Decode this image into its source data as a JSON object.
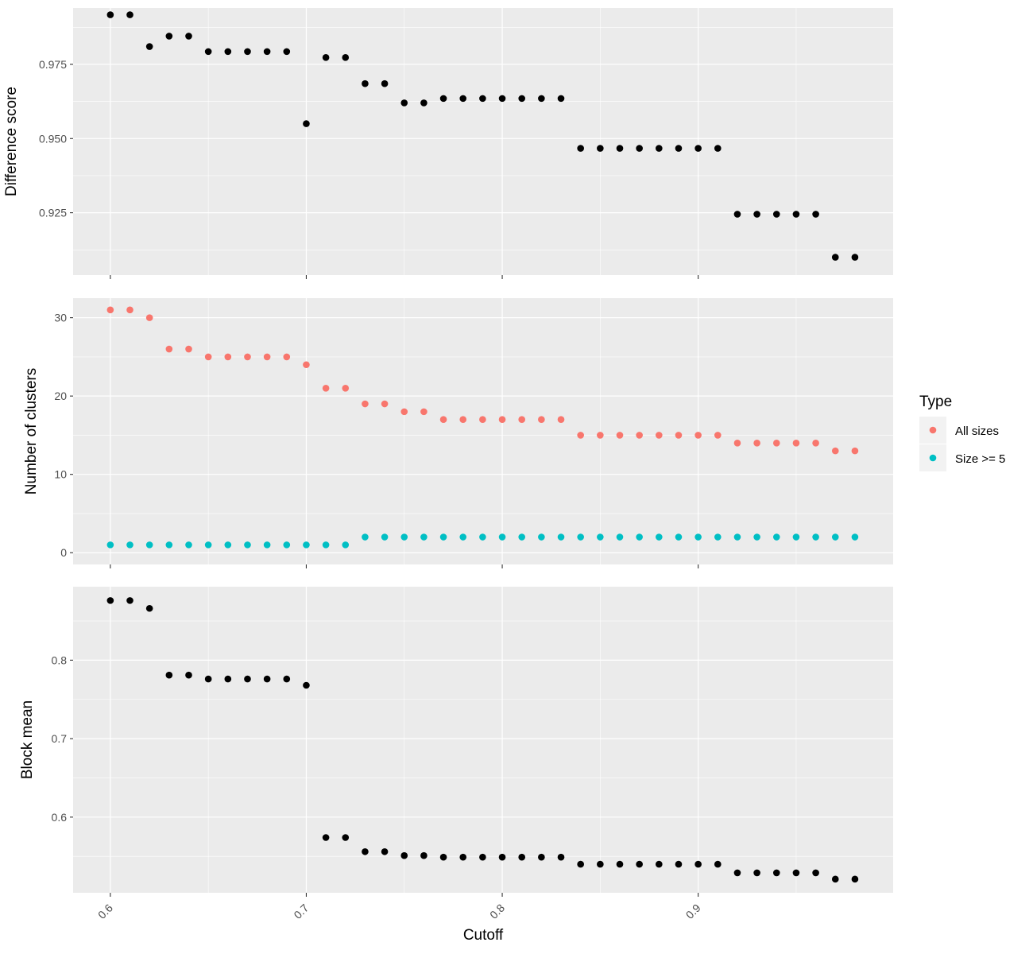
{
  "colors": {
    "panel_bg": "#ebebeb",
    "grid": "#ffffff",
    "all_sizes": "#f8766d",
    "size_ge_5": "#00bfc4",
    "single": "#000000"
  },
  "chart_data": [
    {
      "type": "scatter",
      "ylabel": "Difference score",
      "ylim": [
        0.904,
        0.994
      ],
      "yticks": [
        {
          "value": 0.925,
          "label": "0.925"
        },
        {
          "value": 0.95,
          "label": "0.950"
        },
        {
          "value": 0.975,
          "label": "0.975"
        }
      ],
      "series": [
        {
          "color": "#000000",
          "x": [
            0.6,
            0.61,
            0.62,
            0.63,
            0.64,
            0.65,
            0.66,
            0.67,
            0.68,
            0.69,
            0.7,
            0.71,
            0.72,
            0.73,
            0.74,
            0.75,
            0.76,
            0.77,
            0.78,
            0.79,
            0.8,
            0.81,
            0.82,
            0.83,
            0.84,
            0.85,
            0.86,
            0.87,
            0.88,
            0.89,
            0.9,
            0.91,
            0.92,
            0.93,
            0.94,
            0.95,
            0.96,
            0.97,
            0.98
          ],
          "y": [
            0.9917,
            0.9917,
            0.981,
            0.9845,
            0.9845,
            0.9793,
            0.9793,
            0.9793,
            0.9793,
            0.9793,
            0.955,
            0.9773,
            0.9773,
            0.9685,
            0.9685,
            0.962,
            0.962,
            0.9635,
            0.9635,
            0.9635,
            0.9635,
            0.9635,
            0.9635,
            0.9635,
            0.9467,
            0.9467,
            0.9467,
            0.9467,
            0.9467,
            0.9467,
            0.9467,
            0.9467,
            0.9245,
            0.9245,
            0.9245,
            0.9245,
            0.9245,
            0.91,
            0.91
          ]
        }
      ]
    },
    {
      "type": "scatter",
      "ylabel": "Number of clusters",
      "ylim": [
        -1.5,
        32.5
      ],
      "yticks": [
        {
          "value": 0,
          "label": "0"
        },
        {
          "value": 10,
          "label": "10"
        },
        {
          "value": 20,
          "label": "20"
        },
        {
          "value": 30,
          "label": "30"
        }
      ],
      "legend": {
        "title": "Type",
        "position": "right",
        "entries": [
          {
            "label": "All sizes",
            "color": "#f8766d"
          },
          {
            "label": "Size >= 5",
            "color": "#00bfc4"
          }
        ]
      },
      "series": [
        {
          "name": "All sizes",
          "color": "#f8766d",
          "x": [
            0.6,
            0.61,
            0.62,
            0.63,
            0.64,
            0.65,
            0.66,
            0.67,
            0.68,
            0.69,
            0.7,
            0.71,
            0.72,
            0.73,
            0.74,
            0.75,
            0.76,
            0.77,
            0.78,
            0.79,
            0.8,
            0.81,
            0.82,
            0.83,
            0.84,
            0.85,
            0.86,
            0.87,
            0.88,
            0.89,
            0.9,
            0.91,
            0.92,
            0.93,
            0.94,
            0.95,
            0.96,
            0.97,
            0.98
          ],
          "y": [
            31,
            31,
            30,
            26,
            26,
            25,
            25,
            25,
            25,
            25,
            24,
            21,
            21,
            19,
            19,
            18,
            18,
            17,
            17,
            17,
            17,
            17,
            17,
            17,
            15,
            15,
            15,
            15,
            15,
            15,
            15,
            15,
            14,
            14,
            14,
            14,
            14,
            13,
            13
          ]
        },
        {
          "name": "Size >= 5",
          "color": "#00bfc4",
          "x": [
            0.6,
            0.61,
            0.62,
            0.63,
            0.64,
            0.65,
            0.66,
            0.67,
            0.68,
            0.69,
            0.7,
            0.71,
            0.72,
            0.73,
            0.74,
            0.75,
            0.76,
            0.77,
            0.78,
            0.79,
            0.8,
            0.81,
            0.82,
            0.83,
            0.84,
            0.85,
            0.86,
            0.87,
            0.88,
            0.89,
            0.9,
            0.91,
            0.92,
            0.93,
            0.94,
            0.95,
            0.96,
            0.97,
            0.98
          ],
          "y": [
            1,
            1,
            1,
            1,
            1,
            1,
            1,
            1,
            1,
            1,
            1,
            1,
            1,
            2,
            2,
            2,
            2,
            2,
            2,
            2,
            2,
            2,
            2,
            2,
            2,
            2,
            2,
            2,
            2,
            2,
            2,
            2,
            2,
            2,
            2,
            2,
            2,
            2,
            2
          ]
        }
      ]
    },
    {
      "type": "scatter",
      "ylabel": "Block mean",
      "xlabel": "Cutoff",
      "xlim": [
        0.581,
        0.9995
      ],
      "xticks": [
        {
          "value": 0.6,
          "label": "0.6"
        },
        {
          "value": 0.7,
          "label": "0.7"
        },
        {
          "value": 0.8,
          "label": "0.8"
        },
        {
          "value": 0.9,
          "label": "0.9"
        }
      ],
      "ylim": [
        0.5036,
        0.8936
      ],
      "yticks": [
        {
          "value": 0.6,
          "label": "0.6"
        },
        {
          "value": 0.7,
          "label": "0.7"
        },
        {
          "value": 0.8,
          "label": "0.8"
        }
      ],
      "series": [
        {
          "color": "#000000",
          "x": [
            0.6,
            0.61,
            0.62,
            0.63,
            0.64,
            0.65,
            0.66,
            0.67,
            0.68,
            0.69,
            0.7,
            0.71,
            0.72,
            0.73,
            0.74,
            0.75,
            0.76,
            0.77,
            0.78,
            0.79,
            0.8,
            0.81,
            0.82,
            0.83,
            0.84,
            0.85,
            0.86,
            0.87,
            0.88,
            0.89,
            0.9,
            0.91,
            0.92,
            0.93,
            0.94,
            0.95,
            0.96,
            0.97,
            0.98
          ],
          "y": [
            0.876,
            0.876,
            0.866,
            0.781,
            0.781,
            0.776,
            0.776,
            0.776,
            0.776,
            0.776,
            0.768,
            0.574,
            0.574,
            0.556,
            0.556,
            0.551,
            0.551,
            0.549,
            0.549,
            0.549,
            0.549,
            0.549,
            0.549,
            0.549,
            0.54,
            0.54,
            0.54,
            0.54,
            0.54,
            0.54,
            0.54,
            0.54,
            0.529,
            0.529,
            0.529,
            0.529,
            0.529,
            0.521,
            0.521
          ]
        }
      ]
    }
  ]
}
